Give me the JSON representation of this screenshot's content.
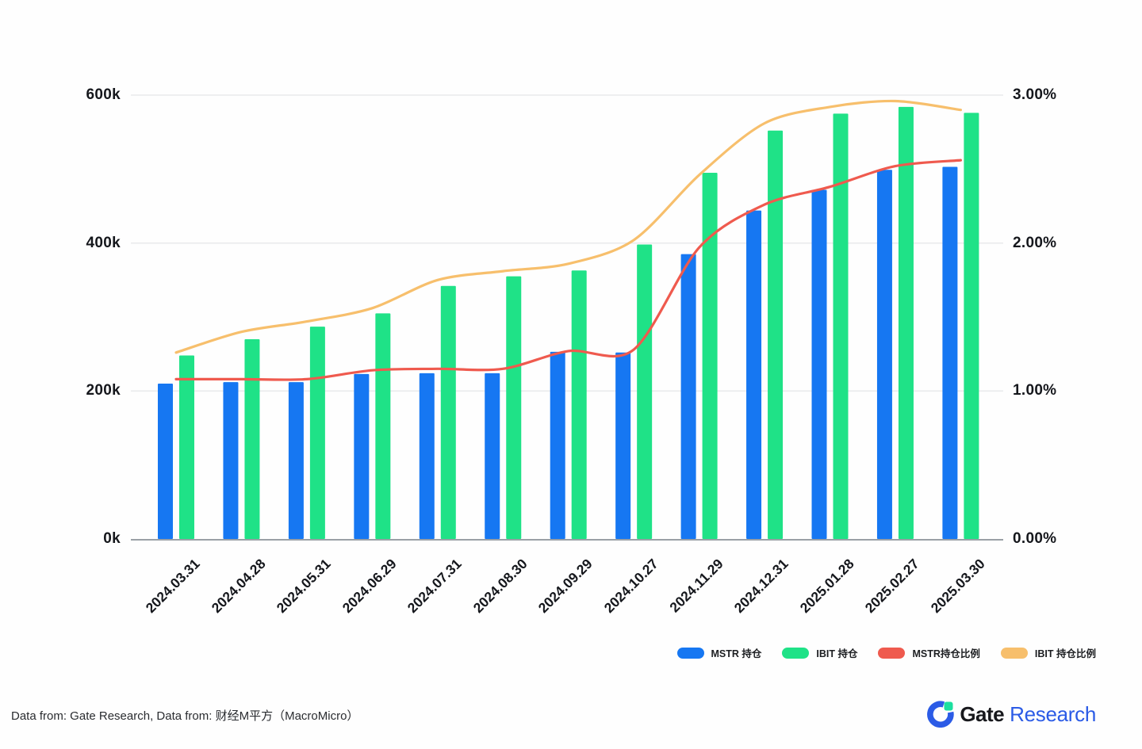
{
  "chart_data": {
    "type": "combo",
    "title": "",
    "categories": [
      "2024.03.31",
      "2024.04.28",
      "2024.05.31",
      "2024.06.29",
      "2024.07.31",
      "2024.08.30",
      "2024.09.29",
      "2024.10.27",
      "2024.11.29",
      "2024.12.31",
      "2025.01.28",
      "2025.02.27",
      "2025.03.30"
    ],
    "series": [
      {
        "name": "MSTR 持仓",
        "type": "bar",
        "y_axis": "left",
        "unit": "k",
        "color": "#1677F2",
        "values": [
          210,
          212,
          212,
          223,
          224,
          224,
          253,
          252,
          385,
          444,
          472,
          499,
          503
        ]
      },
      {
        "name": "IBIT 持仓",
        "type": "bar",
        "y_axis": "left",
        "unit": "k",
        "color": "#1FE287",
        "values": [
          248,
          270,
          287,
          305,
          342,
          355,
          363,
          398,
          495,
          552,
          575,
          584,
          576
        ]
      },
      {
        "name": "MSTR持仓比例",
        "type": "line",
        "y_axis": "right",
        "unit": "%",
        "color": "#EF5A4E",
        "values": [
          1.08,
          1.08,
          1.08,
          1.14,
          1.15,
          1.15,
          1.27,
          1.28,
          1.97,
          2.26,
          2.38,
          2.52,
          2.56
        ]
      },
      {
        "name": "IBIT 持仓比例",
        "type": "line",
        "y_axis": "right",
        "unit": "%",
        "color": "#F7BF6C",
        "values": [
          1.26,
          1.4,
          1.47,
          1.56,
          1.75,
          1.81,
          1.86,
          2.02,
          2.46,
          2.81,
          2.92,
          2.96,
          2.9
        ]
      }
    ],
    "left_axis": {
      "ticks": [
        "0k",
        "200k",
        "400k",
        "600k"
      ],
      "min": 0,
      "max": 600,
      "unit": "k"
    },
    "right_axis": {
      "ticks": [
        "0.00%",
        "1.00%",
        "2.00%",
        "3.00%"
      ],
      "min": 0,
      "max": 3,
      "unit": "%"
    },
    "grid": true,
    "legend_position": "bottom-right"
  },
  "footer": {
    "source": "Data from: Gate Research, Data from: 财经M平方（MacroMicro）"
  },
  "brand": {
    "gate": "Gate",
    "research": "Research"
  },
  "colors": {
    "bar_blue": "#1677F2",
    "bar_green": "#1FE287",
    "line_red": "#EF5A4E",
    "line_orange": "#F7BF6C",
    "gridline": "#e9eaec",
    "axis_line": "#9aa0a6",
    "logo_blue": "#2B5BE6",
    "logo_green": "#1BDF9F",
    "text": "#15171C"
  }
}
